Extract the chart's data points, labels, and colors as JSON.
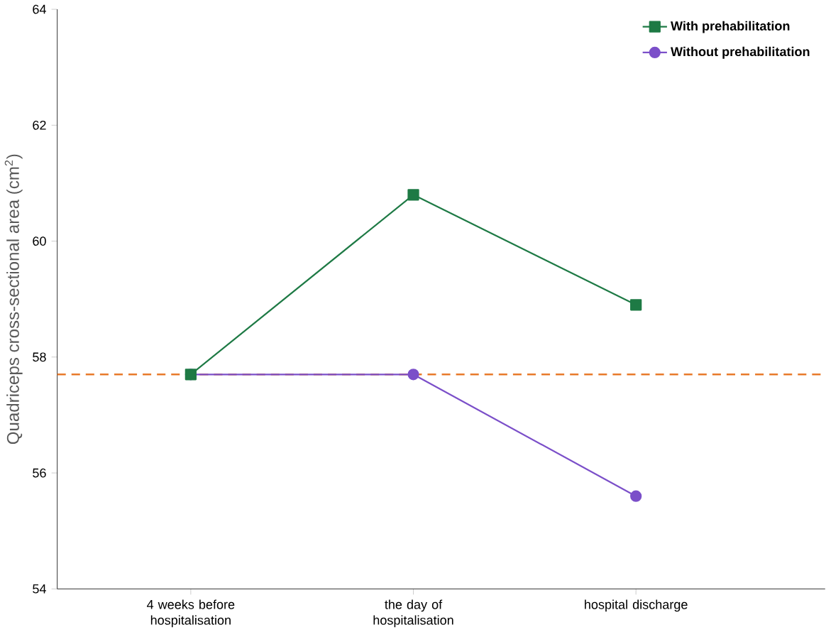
{
  "chart_data": {
    "type": "line",
    "ylabel": "Quadriceps cross-sectional area (cm$^{2}$)",
    "categories": [
      "4 weeks before hospitalisation",
      "the day of hospitalisation",
      "hospital discharge"
    ],
    "series": [
      {
        "name": "With prehabilitation",
        "color": "#1e7a45",
        "marker": "square",
        "values": [
          57.7,
          60.8,
          58.9
        ]
      },
      {
        "name": "Without prehabilitation",
        "color": "#7b4fc9",
        "marker": "circle",
        "values": [
          57.7,
          57.7,
          55.6
        ]
      }
    ],
    "ylim": [
      54,
      64
    ],
    "yticks": [
      54,
      56,
      58,
      60,
      62,
      64
    ],
    "ref_lines": [
      {
        "axis": "y",
        "value": 57.7,
        "color": "#e87a2a",
        "line_style": "dashed"
      }
    ],
    "grid": false,
    "legend": "top right",
    "line_style": "solid"
  }
}
